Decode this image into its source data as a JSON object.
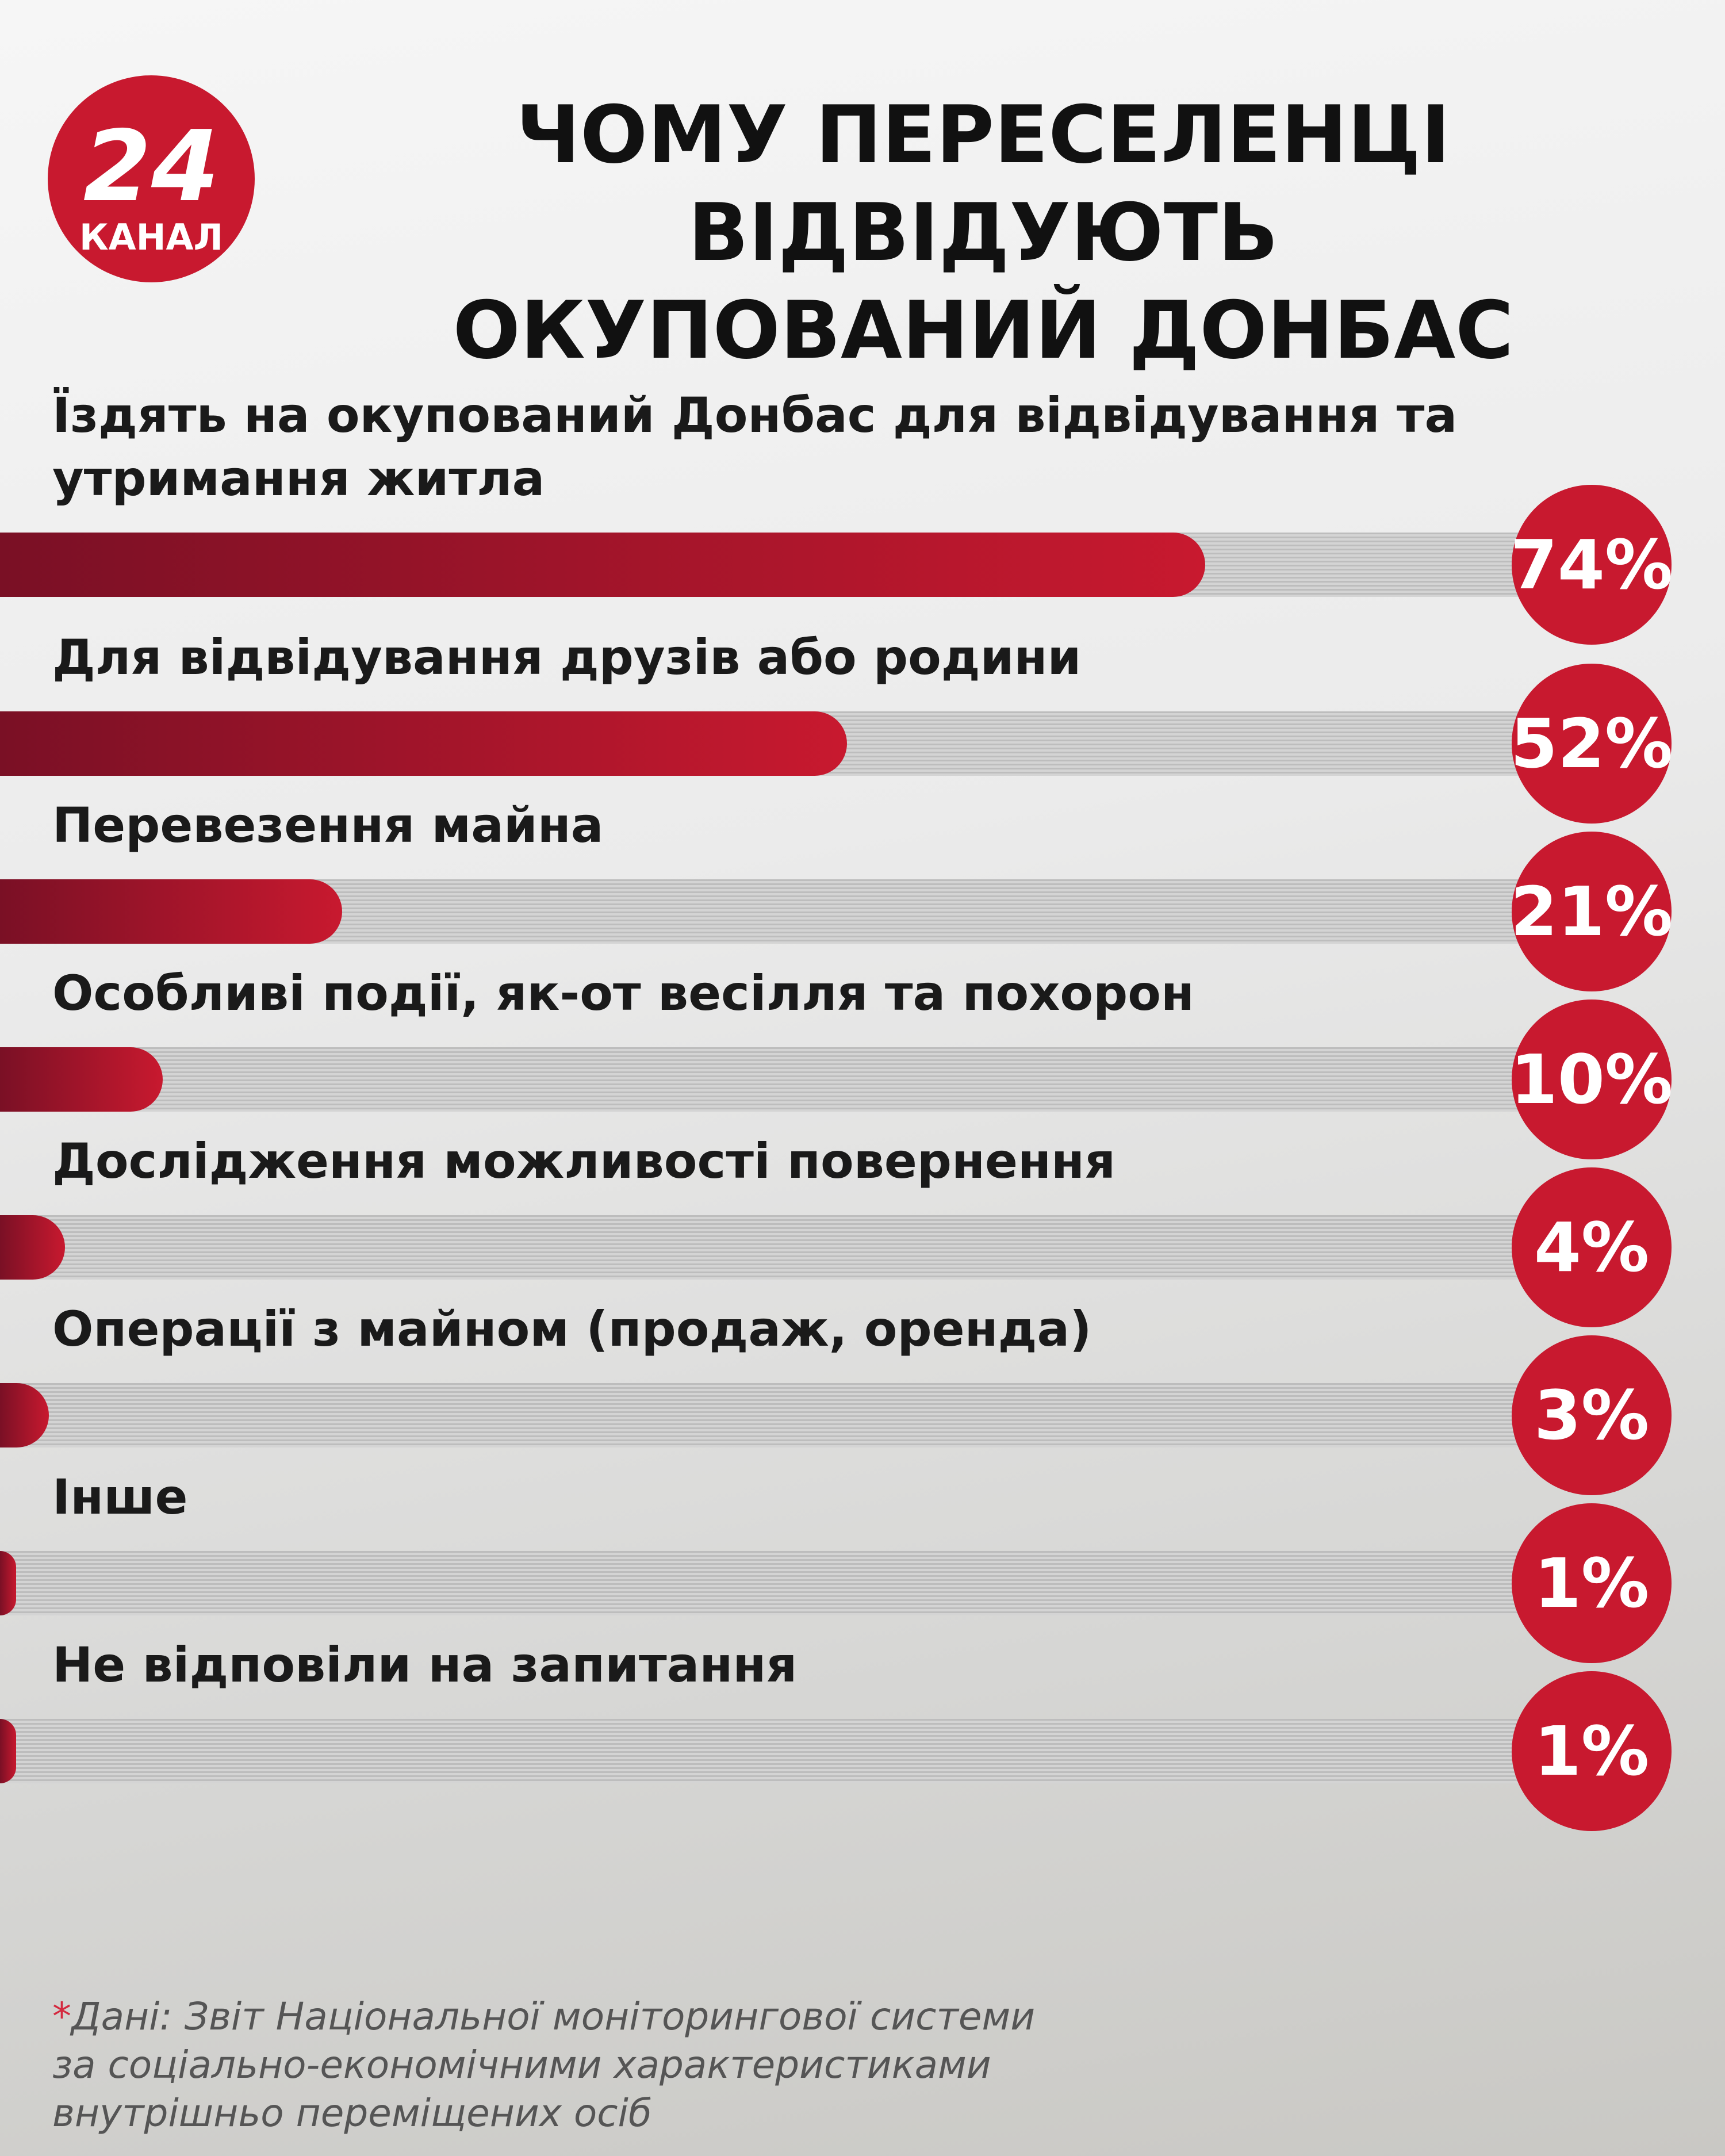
{
  "logo": {
    "number": "24",
    "name": "КАНАЛ"
  },
  "chart_data": {
    "type": "bar",
    "orientation": "horizontal",
    "title": [
      "ЧОМУ ПЕРЕСЕЛЕНЦІ ВІДВІДУЮТЬ",
      "ОКУПОВАНИЙ ДОНБАС"
    ],
    "categories": [
      "Їздять на окупований Донбас для відвідування та утримання житла",
      "Для відвідування друзів або родини",
      "Перевезення майна",
      "Особливі події, як-от весілля та похорон",
      "Дослідження можливості повернення",
      "Операції з майном (продаж, оренда)",
      "Інше",
      "Не відповіли на запитання"
    ],
    "values": [
      74,
      52,
      21,
      10,
      4,
      3,
      1,
      1
    ],
    "value_labels": [
      "74%",
      "52%",
      "21%",
      "10%",
      "4%",
      "3%",
      "1%",
      "1%"
    ],
    "color": "#c8192f"
  },
  "footnote": {
    "marker": "*",
    "text": "Дані: Звіт Національної моніторингової системи за соціально-економічними характеристиками внутрішньо переміщених осіб"
  }
}
